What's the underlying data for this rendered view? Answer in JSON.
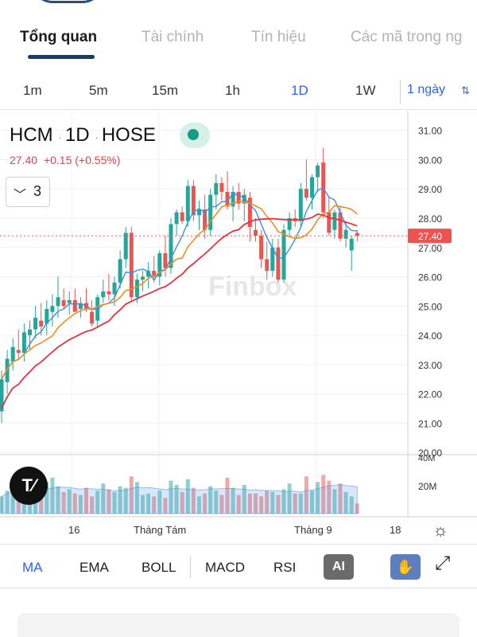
{
  "tabs": [
    {
      "label": "Tổng quan",
      "active": true
    },
    {
      "label": "Tài chính",
      "active": false
    },
    {
      "label": "Tín hiệu",
      "active": false
    },
    {
      "label": "Các mã trong ng",
      "active": false
    }
  ],
  "timeframes": [
    "1m",
    "5m",
    "15m",
    "1h",
    "1D",
    "1W"
  ],
  "active_timeframe": "1D",
  "range_select": {
    "value": "1 ngày"
  },
  "symbol": {
    "ticker": "HCM",
    "interval": "1D",
    "exchange": "HOSE",
    "last": "27.40",
    "change": "+0.15",
    "change_pct": "(+0.55%)"
  },
  "indicator_toggle_count": "3",
  "watermark": "Finbox",
  "colors": {
    "up": "#26a69a",
    "down": "#ef5350",
    "ma_fast": "#3b8fe0",
    "ma_mid": "#f08c24",
    "ma_slow": "#e5323e",
    "accent": "#2962ff"
  },
  "chart_data": {
    "type": "candlestick",
    "y_axis": {
      "ticks": [
        "31.00",
        "30.00",
        "29.00",
        "28.00",
        "27.00",
        "26.00",
        "25.00",
        "24.00",
        "23.00",
        "22.00",
        "21.00",
        "20.00"
      ],
      "range": [
        19.95,
        31.4
      ]
    },
    "current_price_label": "27.40",
    "x_axis": {
      "labels": [
        "16",
        "Tháng Tám",
        "Tháng 9",
        "18"
      ]
    },
    "volume_axis": {
      "ticks": [
        "40M",
        "20M"
      ]
    },
    "candles": [
      [
        21.4,
        22.8,
        21.0,
        22.5
      ],
      [
        22.4,
        23.5,
        22.0,
        23.2
      ],
      [
        23.1,
        23.9,
        22.8,
        23.6
      ],
      [
        23.5,
        24.2,
        23.2,
        23.4
      ],
      [
        23.4,
        24.4,
        23.1,
        24.1
      ],
      [
        24.0,
        24.5,
        23.5,
        24.2
      ],
      [
        24.2,
        25.0,
        23.9,
        24.6
      ],
      [
        24.5,
        25.1,
        24.0,
        24.3
      ],
      [
        24.4,
        25.2,
        24.0,
        24.9
      ],
      [
        24.8,
        25.4,
        24.3,
        25.0
      ],
      [
        25.0,
        26.0,
        24.6,
        25.3
      ],
      [
        25.2,
        25.6,
        24.9,
        25.0
      ],
      [
        25.1,
        25.5,
        24.7,
        25.2
      ],
      [
        25.2,
        25.6,
        24.8,
        24.8
      ],
      [
        24.9,
        25.3,
        24.6,
        25.1
      ],
      [
        25.1,
        25.6,
        24.8,
        24.9
      ],
      [
        24.8,
        25.2,
        24.3,
        24.4
      ],
      [
        24.5,
        25.4,
        24.3,
        25.3
      ],
      [
        25.3,
        25.9,
        25.1,
        25.5
      ],
      [
        25.5,
        26.1,
        25.2,
        25.4
      ],
      [
        25.4,
        26.0,
        25.0,
        25.8
      ],
      [
        25.8,
        26.9,
        25.6,
        26.6
      ],
      [
        26.6,
        27.7,
        26.3,
        27.5
      ],
      [
        27.5,
        27.7,
        25.2,
        25.3
      ],
      [
        25.3,
        26.1,
        25.1,
        25.9
      ],
      [
        25.9,
        26.2,
        25.5,
        26.0
      ],
      [
        26.0,
        26.5,
        25.6,
        26.2
      ],
      [
        26.2,
        26.7,
        25.8,
        26.0
      ],
      [
        26.0,
        26.9,
        25.7,
        26.8
      ],
      [
        26.8,
        27.4,
        26.0,
        26.3
      ],
      [
        26.3,
        28.0,
        26.1,
        27.8
      ],
      [
        27.8,
        28.3,
        27.4,
        28.2
      ],
      [
        28.2,
        28.4,
        27.8,
        27.9
      ],
      [
        27.9,
        29.3,
        27.7,
        29.1
      ],
      [
        29.1,
        29.3,
        27.9,
        28.1
      ],
      [
        28.1,
        28.6,
        27.6,
        28.3
      ],
      [
        28.3,
        28.8,
        27.3,
        27.6
      ],
      [
        27.6,
        29.0,
        27.4,
        28.8
      ],
      [
        28.8,
        29.5,
        28.3,
        29.2
      ],
      [
        29.2,
        29.4,
        28.6,
        28.9
      ],
      [
        28.9,
        29.6,
        28.3,
        28.4
      ],
      [
        28.4,
        29.1,
        27.9,
        28.9
      ],
      [
        28.9,
        29.2,
        28.3,
        28.5
      ],
      [
        28.5,
        29.0,
        27.9,
        28.8
      ],
      [
        28.7,
        28.9,
        27.2,
        27.7
      ],
      [
        27.6,
        28.0,
        27.2,
        27.4
      ],
      [
        27.4,
        27.6,
        26.3,
        26.6
      ],
      [
        26.6,
        27.2,
        25.9,
        26.2
      ],
      [
        26.2,
        27.3,
        26.0,
        27.0
      ],
      [
        27.0,
        27.3,
        25.8,
        25.9
      ],
      [
        25.9,
        27.8,
        25.8,
        27.6
      ],
      [
        27.6,
        28.2,
        27.4,
        28.0
      ],
      [
        28.0,
        28.3,
        27.7,
        27.9
      ],
      [
        27.9,
        29.2,
        27.7,
        29.0
      ],
      [
        29.0,
        30.0,
        28.6,
        28.7
      ],
      [
        28.7,
        29.5,
        28.3,
        29.4
      ],
      [
        29.4,
        29.9,
        28.9,
        29.8
      ],
      [
        29.9,
        30.4,
        28.0,
        28.2
      ],
      [
        28.2,
        28.7,
        27.4,
        27.5
      ],
      [
        27.6,
        28.3,
        27.3,
        28.2
      ],
      [
        28.2,
        28.4,
        27.2,
        27.3
      ],
      [
        27.3,
        27.9,
        27.0,
        27.6
      ],
      [
        26.9,
        27.4,
        26.2,
        27.3
      ],
      [
        27.5,
        27.6,
        27.2,
        27.4
      ]
    ],
    "volumes": [
      12,
      16,
      18,
      21,
      19,
      13,
      15,
      17,
      22,
      25,
      19,
      15,
      17,
      14,
      13,
      18,
      12,
      16,
      21,
      17,
      15,
      19,
      18,
      26,
      22,
      13,
      14,
      12,
      16,
      11,
      23,
      20,
      15,
      24,
      18,
      12,
      14,
      19,
      16,
      13,
      25,
      18,
      13,
      20,
      14,
      14,
      12,
      16,
      15,
      13,
      17,
      21,
      14,
      14,
      26,
      16,
      22,
      27,
      23,
      17,
      21,
      15,
      12,
      7
    ],
    "volume_max": 40
  },
  "indicators": [
    "MA",
    "EMA",
    "BOLL",
    "MACD",
    "RSI"
  ],
  "active_indicator": "MA",
  "buttons": {
    "ai": "AI"
  }
}
